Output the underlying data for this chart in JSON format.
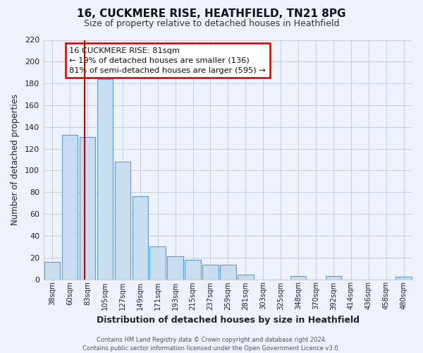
{
  "title": "16, CUCKMERE RISE, HEATHFIELD, TN21 8PG",
  "subtitle": "Size of property relative to detached houses in Heathfield",
  "xlabel": "Distribution of detached houses by size in Heathfield",
  "ylabel": "Number of detached properties",
  "bar_labels": [
    "38sqm",
    "60sqm",
    "83sqm",
    "105sqm",
    "127sqm",
    "149sqm",
    "171sqm",
    "193sqm",
    "215sqm",
    "237sqm",
    "259sqm",
    "281sqm",
    "303sqm",
    "325sqm",
    "348sqm",
    "370sqm",
    "392sqm",
    "414sqm",
    "436sqm",
    "458sqm",
    "480sqm"
  ],
  "bar_values": [
    16,
    133,
    131,
    184,
    108,
    76,
    30,
    21,
    18,
    13,
    13,
    4,
    0,
    0,
    3,
    0,
    3,
    0,
    0,
    0,
    2
  ],
  "bar_color_fill": "#c8ddf0",
  "bar_color_edge": "#5b9bd5",
  "vline_color": "#cc0000",
  "ylim": [
    0,
    220
  ],
  "yticks": [
    0,
    20,
    40,
    60,
    80,
    100,
    120,
    140,
    160,
    180,
    200,
    220
  ],
  "annotation_title": "16 CUCKMERE RISE: 81sqm",
  "annotation_line1": "← 19% of detached houses are smaller (136)",
  "annotation_line2": "81% of semi-detached houses are larger (595) →",
  "footer1": "Contains HM Land Registry data © Crown copyright and database right 2024.",
  "footer2": "Contains public sector information licensed under the Open Government Licence v3.0.",
  "bg_color": "#eef2fb",
  "grid_color": "#c8d0e0"
}
